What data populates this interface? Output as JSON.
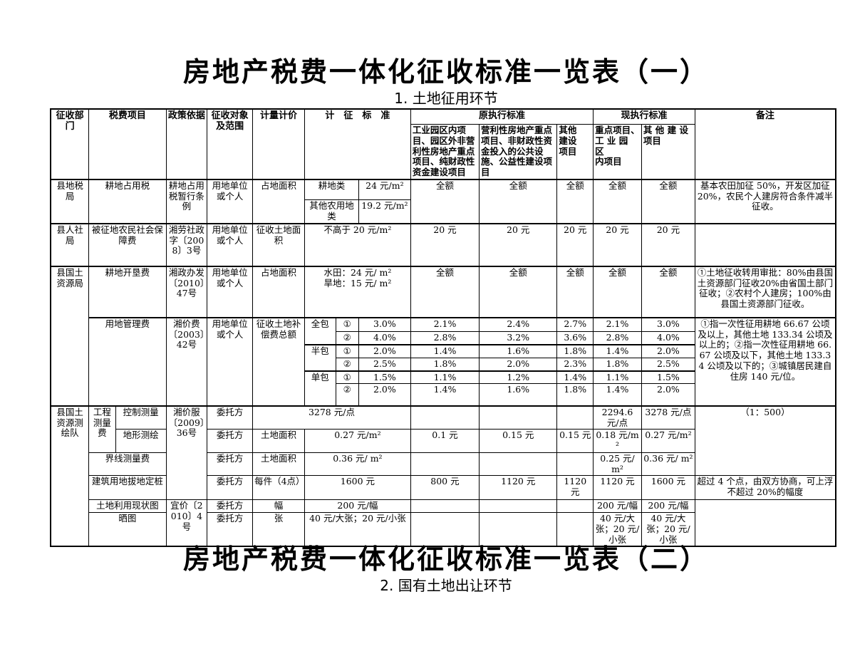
{
  "colors": {
    "text": "#000000",
    "border": "#000000",
    "background": "#ffffff"
  },
  "titles": {
    "main1": "房地产税费一体化征收标准一览表（一）",
    "sub1": "1. 土地征用环节",
    "main2": "房地产税费一体化征收标准一览表（二）",
    "sub2": "2. 国有土地出让环节"
  },
  "table": {
    "rows": [
      {
        "c": "hd",
        "h": 22,
        "cells": [
          {
            "n": "header-dept",
            "t": "征收部门",
            "rs": 2
          },
          {
            "n": "header-fee-item",
            "t": "税费项目",
            "cs": 2,
            "rs": 2
          },
          {
            "n": "header-policy",
            "t": "政策依据",
            "rs": 2
          },
          {
            "n": "header-target",
            "t": "征收对象及范围",
            "rs": 2
          },
          {
            "n": "header-measure",
            "t": "计量计价",
            "rs": 2
          },
          {
            "n": "header-standard",
            "t": "计　征　标　准",
            "cs": 3,
            "rs": 2
          },
          {
            "n": "header-orig-standard",
            "t": "原执行标准",
            "cs": 3
          },
          {
            "n": "header-curr-standard",
            "t": "现执行标准",
            "cs": 2
          },
          {
            "n": "header-remark",
            "t": "备注",
            "rs": 2
          }
        ]
      },
      {
        "c": "hd hd2",
        "h": 73,
        "cells": [
          {
            "n": "header-orig-col1",
            "t": "工业园区内项目、园区外非营利性房地产重点项目、纯财政性资金建设项目",
            "c": "lt"
          },
          {
            "n": "header-orig-col2",
            "t": "营利性房地产重点项目、非财政性资金投入的公共设施、公益性建设项目",
            "c": "lt"
          },
          {
            "n": "header-orig-col3",
            "t": "其他\n建设\n项目",
            "c": "lt pre"
          },
          {
            "n": "header-curr-col1",
            "t": "重点项目、\n工 业 园 区\n内项目",
            "c": "lt pre"
          },
          {
            "n": "header-curr-col2",
            "t": "其 他 建 设\n项目",
            "c": "lt pre"
          }
        ]
      },
      {
        "c": "thick",
        "h": 29,
        "cells": [
          {
            "n": "dept-cell",
            "t": "县地税局",
            "rs": 2
          },
          {
            "n": "fee-item-cell",
            "t": "耕地占用税",
            "cs": 2,
            "rs": 2
          },
          {
            "n": "policy-cell",
            "t": "耕地占用税暂行条例",
            "rs": 2
          },
          {
            "n": "target-cell",
            "t": "用地单位或个人",
            "rs": 2
          },
          {
            "n": "measure-cell",
            "t": "占地面积",
            "rs": 2
          },
          {
            "n": "standard-label-cell",
            "t": "耕地类",
            "cs": 2
          },
          {
            "n": "standard-value-cell",
            "t": "24 元/m²"
          },
          {
            "n": "orig-std-cell-1",
            "t": "全额",
            "rs": 2
          },
          {
            "n": "orig-std-cell-2",
            "t": "全额",
            "rs": 2
          },
          {
            "n": "orig-std-cell-3",
            "t": "全额",
            "rs": 2
          },
          {
            "n": "curr-std-cell-1",
            "t": "全额",
            "rs": 2
          },
          {
            "n": "curr-std-cell-2",
            "t": "全额",
            "rs": 2
          },
          {
            "n": "remark-cell",
            "t": "基本农田加征 50%，开发区加征 20%，农民个人建房符合条件减半征收。",
            "rs": 2,
            "c": "note"
          }
        ]
      },
      {
        "h": 28,
        "cells": [
          {
            "n": "standard-label-cell",
            "t": "其他农用地类",
            "cs": 2
          },
          {
            "n": "standard-value-cell",
            "t": "19.2 元/m²"
          }
        ]
      },
      {
        "c": "thick",
        "h": 60,
        "cells": [
          {
            "n": "dept-cell",
            "t": "县人社局"
          },
          {
            "n": "fee-item-cell",
            "t": "被征地农民社会保障费",
            "cs": 2
          },
          {
            "n": "policy-cell",
            "t": "湘劳社政字〔2008〕3号"
          },
          {
            "n": "target-cell",
            "t": "用地单位或个人"
          },
          {
            "n": "measure-cell",
            "t": "征收土地面积"
          },
          {
            "n": "standard-value-cell",
            "t": "不高于 20 元/m²",
            "cs": 3
          },
          {
            "n": "orig-std-cell-1",
            "t": "20 元"
          },
          {
            "n": "orig-std-cell-2",
            "t": "20 元"
          },
          {
            "n": "orig-std-cell-3",
            "t": "20 元"
          },
          {
            "n": "curr-std-cell-1",
            "t": "20 元"
          },
          {
            "n": "curr-std-cell-2",
            "t": "20 元"
          },
          {
            "n": "remark-cell",
            "t": "",
            "c": "note"
          }
        ]
      },
      {
        "c": "thick",
        "h": 72,
        "cells": [
          {
            "n": "dept-cell",
            "t": "县国土资源局",
            "rs": 7
          },
          {
            "n": "fee-item-cell",
            "t": "耕地开垦费",
            "cs": 2
          },
          {
            "n": "policy-cell",
            "t": "湘政办发〔2010〕47号"
          },
          {
            "n": "target-cell",
            "t": "用地单位或个人"
          },
          {
            "n": "measure-cell",
            "t": "占地面积"
          },
          {
            "n": "standard-value-cell",
            "t": "水田：24 元/ m²\n旱地：15 元/ m²",
            "cs": 3,
            "c": "pre"
          },
          {
            "n": "orig-std-cell-1",
            "t": "全额"
          },
          {
            "n": "orig-std-cell-2",
            "t": "全额"
          },
          {
            "n": "orig-std-cell-3",
            "t": "全额"
          },
          {
            "n": "curr-std-cell-1",
            "t": "全额"
          },
          {
            "n": "curr-std-cell-2",
            "t": "全额"
          },
          {
            "n": "remark-cell",
            "t": "①土地征收转用审批：80%由县国土资源部门征收20%由省国土部门征收；②农村个人建房；100%由县国土资源部门征收。",
            "c": "note"
          }
        ]
      },
      {
        "c": "thick",
        "h": 20,
        "cells": [
          {
            "n": "fee-item-cell",
            "t": "用地管理费",
            "cs": 2,
            "rs": 6
          },
          {
            "n": "policy-cell",
            "t": "湘价费〔2003〕42号",
            "rs": 6
          },
          {
            "n": "target-cell",
            "t": "用地单位或个人",
            "rs": 6
          },
          {
            "n": "measure-cell",
            "t": "征收土地补偿费总额",
            "rs": 6
          },
          {
            "n": "contract-type-cell",
            "t": "全包",
            "rs": 2
          },
          {
            "n": "grade-mark-cell",
            "t": "①"
          },
          {
            "n": "standard-value-cell",
            "t": "3.0%"
          },
          {
            "n": "orig-std-cell-1",
            "t": "2.1%"
          },
          {
            "n": "orig-std-cell-2",
            "t": "2.4%"
          },
          {
            "n": "orig-std-cell-3",
            "t": "2.7%"
          },
          {
            "n": "curr-std-cell-1",
            "t": "2.1%"
          },
          {
            "n": "curr-std-cell-2",
            "t": "3.0%"
          },
          {
            "n": "remark-cell",
            "t": "①指一次性征用耕地 66.67 公顷及以上，其他土地 133.34 公顷及以上的；②指一次性征用耕地 66.67 公顷及以下，其他土地 133.34 公顷及以下的；③城镇居民建自住房 140 元/位。",
            "rs": 6,
            "c": "note"
          }
        ]
      },
      {
        "h": 17,
        "cells": [
          {
            "n": "grade-mark-cell",
            "t": "②"
          },
          {
            "n": "standard-value-cell",
            "t": "4.0%"
          },
          {
            "n": "orig-std-cell-1",
            "t": "2.8%"
          },
          {
            "n": "orig-std-cell-2",
            "t": "3.2%"
          },
          {
            "n": "orig-std-cell-3",
            "t": "3.6%"
          },
          {
            "n": "curr-std-cell-1",
            "t": "2.8%"
          },
          {
            "n": "curr-std-cell-2",
            "t": "4.0%"
          }
        ]
      },
      {
        "c": "thick",
        "h": 17,
        "cells": [
          {
            "n": "contract-type-cell",
            "t": "半包",
            "rs": 2
          },
          {
            "n": "grade-mark-cell",
            "t": "①"
          },
          {
            "n": "standard-value-cell",
            "t": "2.0%"
          },
          {
            "n": "orig-std-cell-1",
            "t": "1.4%"
          },
          {
            "n": "orig-std-cell-2",
            "t": "1.6%"
          },
          {
            "n": "orig-std-cell-3",
            "t": "1.8%"
          },
          {
            "n": "curr-std-cell-1",
            "t": "1.4%"
          },
          {
            "n": "curr-std-cell-2",
            "t": "2.0%"
          }
        ]
      },
      {
        "h": 17,
        "cells": [
          {
            "n": "grade-mark-cell",
            "t": "②"
          },
          {
            "n": "standard-value-cell",
            "t": "2.5%"
          },
          {
            "n": "orig-std-cell-1",
            "t": "1.8%"
          },
          {
            "n": "orig-std-cell-2",
            "t": "2.0%"
          },
          {
            "n": "orig-std-cell-3",
            "t": "2.3%"
          },
          {
            "n": "curr-std-cell-1",
            "t": "1.8%"
          },
          {
            "n": "curr-std-cell-2",
            "t": "2.5%"
          }
        ]
      },
      {
        "c": "thick",
        "h": 17,
        "cells": [
          {
            "n": "contract-type-cell",
            "t": "单包",
            "rs": 2
          },
          {
            "n": "grade-mark-cell",
            "t": "①"
          },
          {
            "n": "standard-value-cell",
            "t": "1.5%"
          },
          {
            "n": "orig-std-cell-1",
            "t": "1.1%"
          },
          {
            "n": "orig-std-cell-2",
            "t": "1.2%"
          },
          {
            "n": "orig-std-cell-3",
            "t": "1.4%"
          },
          {
            "n": "curr-std-cell-1",
            "t": "1.1%"
          },
          {
            "n": "curr-std-cell-2",
            "t": "1.5%"
          }
        ]
      },
      {
        "h": 31,
        "cells": [
          {
            "n": "grade-mark-cell",
            "t": "②"
          },
          {
            "n": "standard-value-cell",
            "t": "2.0%"
          },
          {
            "n": "orig-std-cell-1",
            "t": "1.4%"
          },
          {
            "n": "orig-std-cell-2",
            "t": "1.6%"
          },
          {
            "n": "orig-std-cell-3",
            "t": "1.8%"
          },
          {
            "n": "curr-std-cell-1",
            "t": "1.4%"
          },
          {
            "n": "curr-std-cell-2",
            "t": "2.0%"
          }
        ]
      },
      {
        "c": "thick",
        "h": 17,
        "cells": [
          {
            "n": "dept-cell",
            "t": "县国土资源测绘队",
            "rs": 6
          },
          {
            "n": "fee-item-group-cell",
            "t": "工程测量费",
            "rs": 2
          },
          {
            "n": "fee-item-sub-cell",
            "t": "控制测量"
          },
          {
            "n": "policy-cell",
            "t": "湘价服〔2009〕36号",
            "rs": 4
          },
          {
            "n": "target-cell",
            "t": "委托方"
          },
          {
            "n": "standard-value-cell",
            "t": "3278 元/点",
            "cs": 4
          },
          {
            "n": "orig-std-cell-1",
            "t": ""
          },
          {
            "n": "orig-std-cell-2",
            "t": ""
          },
          {
            "n": "orig-std-cell-3",
            "t": ""
          },
          {
            "n": "curr-std-cell-1",
            "t": "2294.6 元/点",
            "c": "sm"
          },
          {
            "n": "curr-std-cell-2",
            "t": "3278 元/点"
          },
          {
            "n": "remark-cell",
            "t": "（1：500）",
            "rs": 3
          }
        ]
      },
      {
        "h": 28,
        "cells": [
          {
            "n": "fee-item-sub-cell",
            "t": "地形测绘"
          },
          {
            "n": "target-cell",
            "t": "委托方"
          },
          {
            "n": "measure-cell",
            "t": "土地面积"
          },
          {
            "n": "standard-value-cell",
            "t": "0.27 元/m²",
            "cs": 3
          },
          {
            "n": "orig-std-cell-1",
            "t": "0.1 元"
          },
          {
            "n": "orig-std-cell-2",
            "t": "0.15 元"
          },
          {
            "n": "orig-std-cell-3",
            "t": "0.15 元"
          },
          {
            "n": "curr-std-cell-1",
            "t": "0.18 元/m²",
            "c": "sm"
          },
          {
            "n": "curr-std-cell-2",
            "t": "0.27 元/m²",
            "c": "sm"
          }
        ]
      },
      {
        "h": 17,
        "cells": [
          {
            "n": "fee-item-cell",
            "t": "界线测量费",
            "cs": 2
          },
          {
            "n": "target-cell",
            "t": "委托方"
          },
          {
            "n": "measure-cell",
            "t": "土地面积"
          },
          {
            "n": "standard-value-cell",
            "t": "0.36 元/ m²",
            "cs": 3
          },
          {
            "n": "orig-std-cell-1",
            "t": ""
          },
          {
            "n": "orig-std-cell-2",
            "t": ""
          },
          {
            "n": "orig-std-cell-3",
            "t": ""
          },
          {
            "n": "curr-std-cell-1",
            "t": "0.25 元/ m²",
            "c": "sm"
          },
          {
            "n": "curr-std-cell-2",
            "t": "0.36 元/ m²",
            "c": "sm"
          }
        ]
      },
      {
        "h": 34,
        "cells": [
          {
            "n": "fee-item-cell",
            "t": "建筑用地拔地定桩",
            "cs": 2
          },
          {
            "n": "target-cell",
            "t": "委托方"
          },
          {
            "n": "measure-cell",
            "t": "每件（4点）"
          },
          {
            "n": "standard-value-cell",
            "t": "1600 元",
            "cs": 3
          },
          {
            "n": "orig-std-cell-1",
            "t": "800 元"
          },
          {
            "n": "orig-std-cell-2",
            "t": "1120 元"
          },
          {
            "n": "orig-std-cell-3",
            "t": "1120 元"
          },
          {
            "n": "curr-std-cell-1",
            "t": "1120 元"
          },
          {
            "n": "curr-std-cell-2",
            "t": "1600 元"
          },
          {
            "n": "remark-cell",
            "t": "超过 4 个点，由双方协商，可上浮不超过 20%的幅度"
          }
        ]
      },
      {
        "h": 17,
        "cells": [
          {
            "n": "fee-item-cell",
            "t": "土地利用现状图",
            "cs": 2
          },
          {
            "n": "policy-cell",
            "t": "宜价〔2010〕4号",
            "rs": 2
          },
          {
            "n": "target-cell",
            "t": "委托方"
          },
          {
            "n": "measure-cell",
            "t": "幅"
          },
          {
            "n": "standard-value-cell",
            "t": "200 元/幅",
            "cs": 3
          },
          {
            "n": "orig-std-cell-1",
            "t": ""
          },
          {
            "n": "orig-std-cell-2",
            "t": ""
          },
          {
            "n": "orig-std-cell-3",
            "t": ""
          },
          {
            "n": "curr-std-cell-1",
            "t": "200 元/幅"
          },
          {
            "n": "curr-std-cell-2",
            "t": "200 元/幅"
          },
          {
            "n": "remark-cell",
            "t": "",
            "rs": 2
          }
        ]
      },
      {
        "h": 35,
        "cells": [
          {
            "n": "fee-item-cell",
            "t": "晒图",
            "cs": 2
          },
          {
            "n": "target-cell",
            "t": "委托方"
          },
          {
            "n": "measure-cell",
            "t": "张"
          },
          {
            "n": "standard-value-cell",
            "t": "40 元/大张；20 元/小张",
            "cs": 3
          },
          {
            "n": "orig-std-cell-1",
            "t": ""
          },
          {
            "n": "orig-std-cell-2",
            "t": ""
          },
          {
            "n": "orig-std-cell-3",
            "t": ""
          },
          {
            "n": "curr-std-cell-1",
            "t": "40 元/大张；20 元/小张",
            "c": "sm"
          },
          {
            "n": "curr-std-cell-2",
            "t": "40 元/大张；20 元/小张",
            "c": "sm"
          }
        ]
      }
    ]
  }
}
